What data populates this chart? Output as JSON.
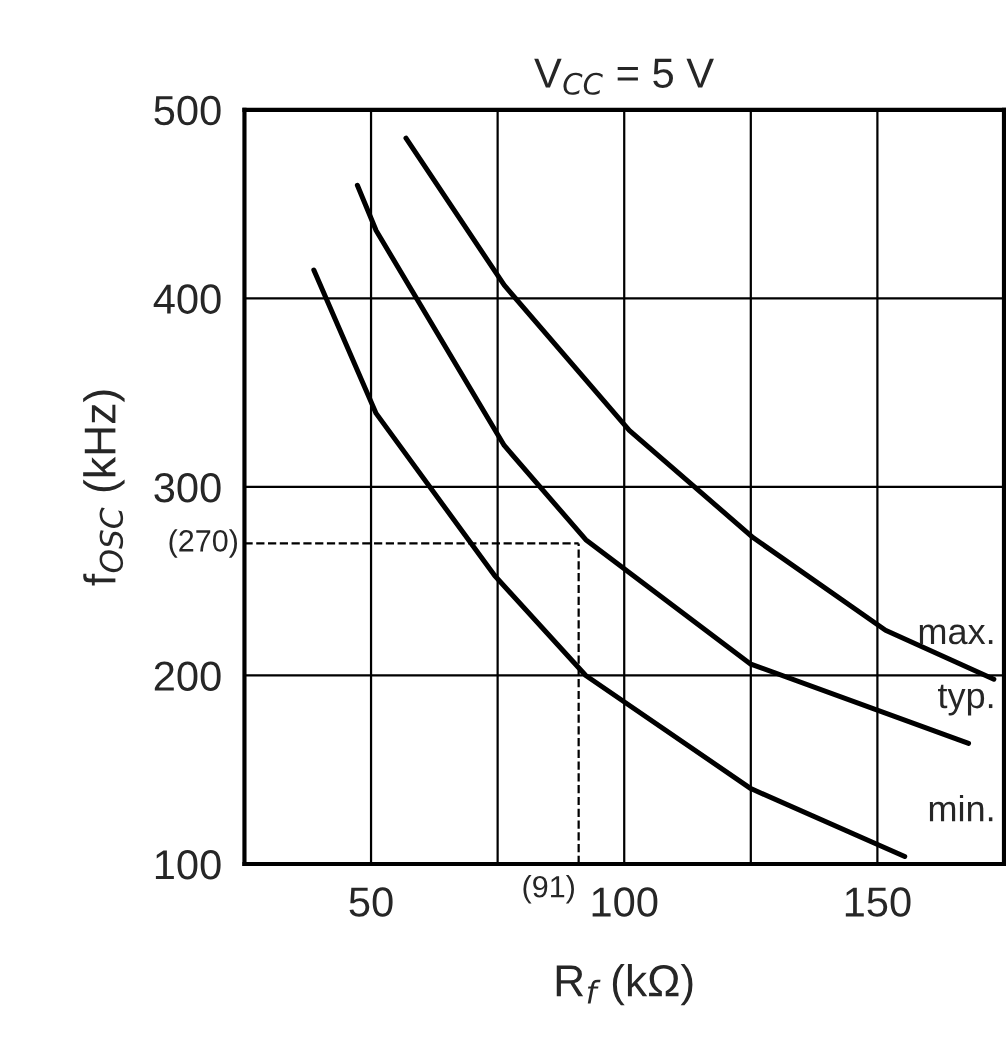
{
  "chart_data": {
    "type": "line",
    "title": "V$_{CC}$ = 5 V",
    "xlabel": "R$_{f}$ (kΩ)",
    "ylabel": "f$_{OSC}$ (kHz)",
    "xlim": [
      25,
      175
    ],
    "ylim": [
      100,
      500
    ],
    "xticks": [
      {
        "value": 25,
        "label": null
      },
      50,
      {
        "value": 75,
        "label": null
      },
      100,
      {
        "value": 125,
        "label": null
      },
      150,
      {
        "value": 175,
        "label": null
      }
    ],
    "yticks": [
      100,
      200,
      300,
      400,
      500
    ],
    "grid": true,
    "line_style": "solid",
    "marker": "none",
    "series": [
      {
        "name": "max.",
        "color": "#000000",
        "x": [
          56.9,
          76.3,
          101,
          125.5,
          151.6,
          173
        ],
        "values": [
          485,
          407,
          330,
          273,
          224,
          198
        ]
      },
      {
        "name": "typ.",
        "color": "#000000",
        "x": [
          47.3,
          51,
          76.3,
          92.4,
          125,
          168
        ],
        "values": [
          460,
          436,
          322,
          272,
          206,
          164
        ]
      },
      {
        "name": "min.",
        "color": "#000000",
        "x": [
          38.7,
          51,
          74.4,
          92.4,
          125,
          155.4
        ],
        "values": [
          415,
          339,
          253,
          200,
          140,
          104
        ]
      }
    ],
    "ref_lines": [
      {
        "axis": "y",
        "value": 270,
        "label": "(270)",
        "line_style": "dashed",
        "color": "#000000"
      },
      {
        "axis": "x",
        "value": 91,
        "label": "(91)",
        "line_style": "dashed",
        "color": "#000000"
      }
    ]
  }
}
